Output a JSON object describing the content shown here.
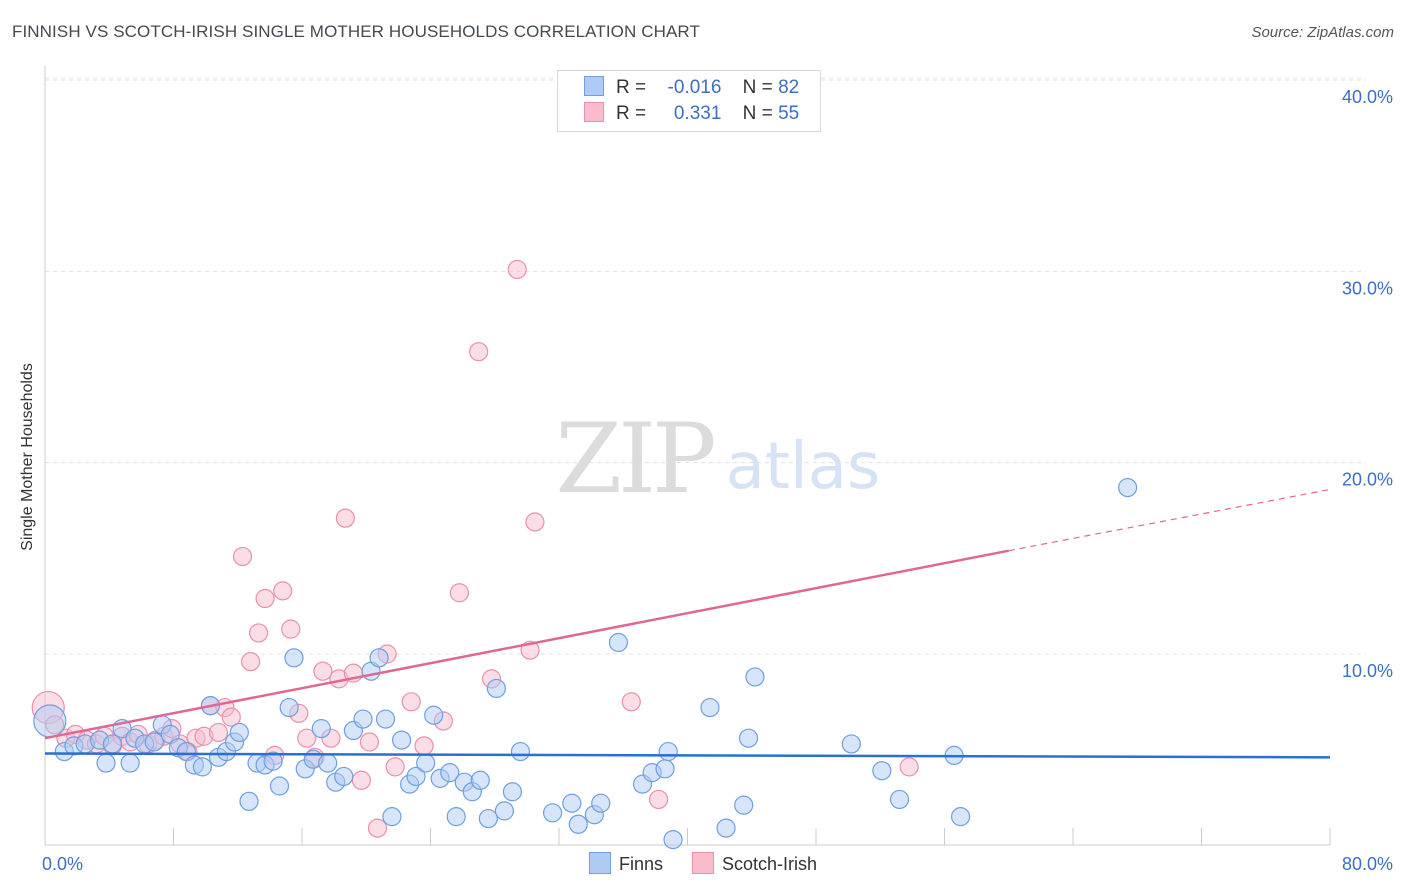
{
  "header": {
    "title": "FINNISH VS SCOTCH-IRISH SINGLE MOTHER HOUSEHOLDS CORRELATION CHART",
    "source": "Source: ZipAtlas.com"
  },
  "watermark": {
    "zip": "ZIP",
    "atlas": "atlas"
  },
  "legend": {
    "rows": [
      {
        "r_label": "R =",
        "r_value": "-0.016",
        "n_label": "N =",
        "n_value": "82"
      },
      {
        "r_label": "R =",
        "r_value": "0.331",
        "n_label": "N =",
        "n_value": "55"
      }
    ]
  },
  "chart_data": {
    "type": "scatter",
    "title": "FINNISH VS SCOTCH-IRISH SINGLE MOTHER HOUSEHOLDS CORRELATION CHART",
    "xlabel": "",
    "ylabel": "Single Mother Households",
    "xlim": [
      0,
      80
    ],
    "ylim": [
      0,
      42
    ],
    "x_tick_labels": [
      "0.0%",
      "80.0%"
    ],
    "y_ticks": [
      10,
      20,
      30,
      40
    ],
    "y_tick_labels": [
      "10.0%",
      "20.0%",
      "30.0%",
      "40.0%"
    ],
    "grid": true,
    "legend_position": "top-center",
    "colors": {
      "finns_fill": "#aecbf5",
      "finns_stroke": "#6f9fe0",
      "finns_line": "#2a6fd1",
      "scotch_fill": "#f8bccd",
      "scotch_stroke": "#ec8fab",
      "scotch_line": "#e06890",
      "tick_label": "#3b6fc4",
      "grid": "#e0e0e0"
    },
    "series": [
      {
        "name": "Finns",
        "r": -0.016,
        "n": 82,
        "trend": {
          "x": [
            0,
            80
          ],
          "y": [
            4.8,
            4.6
          ]
        },
        "points": [
          [
            0.3,
            6.5
          ],
          [
            1.2,
            4.9
          ],
          [
            1.8,
            5.2
          ],
          [
            2.5,
            5.3
          ],
          [
            3.4,
            5.5
          ],
          [
            3.8,
            4.3
          ],
          [
            4.2,
            5.3
          ],
          [
            4.8,
            6.1
          ],
          [
            5.3,
            4.3
          ],
          [
            5.6,
            5.6
          ],
          [
            6.2,
            5.3
          ],
          [
            6.8,
            5.4
          ],
          [
            7.3,
            6.3
          ],
          [
            7.8,
            5.8
          ],
          [
            8.3,
            5.1
          ],
          [
            8.8,
            4.9
          ],
          [
            9.3,
            4.2
          ],
          [
            9.8,
            4.1
          ],
          [
            10.3,
            7.3
          ],
          [
            10.8,
            4.6
          ],
          [
            11.3,
            4.9
          ],
          [
            11.8,
            5.4
          ],
          [
            12.1,
            5.9
          ],
          [
            12.7,
            2.3
          ],
          [
            13.2,
            4.3
          ],
          [
            13.7,
            4.2
          ],
          [
            14.2,
            4.4
          ],
          [
            14.6,
            3.1
          ],
          [
            15.2,
            7.2
          ],
          [
            15.5,
            9.8
          ],
          [
            16.2,
            4.0
          ],
          [
            16.7,
            4.5
          ],
          [
            17.2,
            6.1
          ],
          [
            17.6,
            4.3
          ],
          [
            18.1,
            3.3
          ],
          [
            18.6,
            3.6
          ],
          [
            19.2,
            6.0
          ],
          [
            19.8,
            6.6
          ],
          [
            20.3,
            9.1
          ],
          [
            20.8,
            9.8
          ],
          [
            21.2,
            6.6
          ],
          [
            21.6,
            1.5
          ],
          [
            22.2,
            5.5
          ],
          [
            22.7,
            3.2
          ],
          [
            23.1,
            3.6
          ],
          [
            23.7,
            4.3
          ],
          [
            24.2,
            6.8
          ],
          [
            24.6,
            3.5
          ],
          [
            25.2,
            3.8
          ],
          [
            25.6,
            1.5
          ],
          [
            26.1,
            3.3
          ],
          [
            26.6,
            2.8
          ],
          [
            27.1,
            3.4
          ],
          [
            27.6,
            1.4
          ],
          [
            28.1,
            8.2
          ],
          [
            28.6,
            1.8
          ],
          [
            29.1,
            2.8
          ],
          [
            29.6,
            4.9
          ],
          [
            31.6,
            1.7
          ],
          [
            32.8,
            2.2
          ],
          [
            33.2,
            1.1
          ],
          [
            34.2,
            1.6
          ],
          [
            34.6,
            2.2
          ],
          [
            35.7,
            10.6
          ],
          [
            37.2,
            3.2
          ],
          [
            37.8,
            3.8
          ],
          [
            38.6,
            4.0
          ],
          [
            38.8,
            4.9
          ],
          [
            39.1,
            0.3
          ],
          [
            41.4,
            7.2
          ],
          [
            42.4,
            0.9
          ],
          [
            43.5,
            2.1
          ],
          [
            43.8,
            5.6
          ],
          [
            44.2,
            8.8
          ],
          [
            50.2,
            5.3
          ],
          [
            52.1,
            3.9
          ],
          [
            53.2,
            2.4
          ],
          [
            56.6,
            4.7
          ],
          [
            57.0,
            1.5
          ],
          [
            67.4,
            18.7
          ]
        ]
      },
      {
        "name": "Scotch-Irish",
        "r": 0.331,
        "n": 55,
        "trend": {
          "x": [
            0,
            60
          ],
          "y": [
            5.6,
            15.4
          ]
        },
        "trend_dashed": {
          "x": [
            60,
            80
          ],
          "y": [
            15.4,
            18.6
          ]
        },
        "points": [
          [
            0.2,
            7.2
          ],
          [
            0.6,
            6.3
          ],
          [
            1.3,
            5.6
          ],
          [
            1.9,
            5.8
          ],
          [
            2.6,
            5.5
          ],
          [
            3.2,
            5.3
          ],
          [
            3.7,
            5.7
          ],
          [
            4.2,
            5.2
          ],
          [
            4.8,
            5.7
          ],
          [
            5.3,
            5.4
          ],
          [
            5.8,
            5.8
          ],
          [
            6.4,
            5.3
          ],
          [
            6.9,
            5.5
          ],
          [
            7.4,
            5.7
          ],
          [
            7.9,
            6.1
          ],
          [
            8.4,
            5.3
          ],
          [
            8.9,
            4.9
          ],
          [
            9.4,
            5.6
          ],
          [
            9.9,
            5.7
          ],
          [
            10.3,
            7.3
          ],
          [
            10.8,
            5.9
          ],
          [
            11.2,
            7.2
          ],
          [
            11.6,
            6.7
          ],
          [
            12.3,
            15.1
          ],
          [
            12.8,
            9.6
          ],
          [
            13.3,
            11.1
          ],
          [
            13.7,
            12.9
          ],
          [
            14.3,
            4.7
          ],
          [
            14.8,
            13.3
          ],
          [
            15.3,
            11.3
          ],
          [
            15.8,
            6.9
          ],
          [
            16.3,
            5.6
          ],
          [
            16.8,
            4.6
          ],
          [
            17.3,
            9.1
          ],
          [
            17.8,
            5.6
          ],
          [
            18.3,
            8.7
          ],
          [
            18.7,
            17.1
          ],
          [
            19.2,
            9.0
          ],
          [
            19.7,
            3.4
          ],
          [
            20.2,
            5.4
          ],
          [
            20.7,
            0.9
          ],
          [
            21.3,
            10.0
          ],
          [
            21.8,
            4.1
          ],
          [
            22.8,
            7.5
          ],
          [
            23.6,
            5.2
          ],
          [
            24.8,
            6.5
          ],
          [
            25.8,
            13.2
          ],
          [
            27.0,
            25.8
          ],
          [
            27.8,
            8.7
          ],
          [
            29.4,
            30.1
          ],
          [
            30.2,
            10.2
          ],
          [
            30.5,
            16.9
          ],
          [
            36.5,
            7.5
          ],
          [
            38.2,
            2.4
          ],
          [
            53.8,
            4.1
          ]
        ]
      }
    ]
  },
  "bottom_legend": {
    "items": [
      "Finns",
      "Scotch-Irish"
    ]
  }
}
